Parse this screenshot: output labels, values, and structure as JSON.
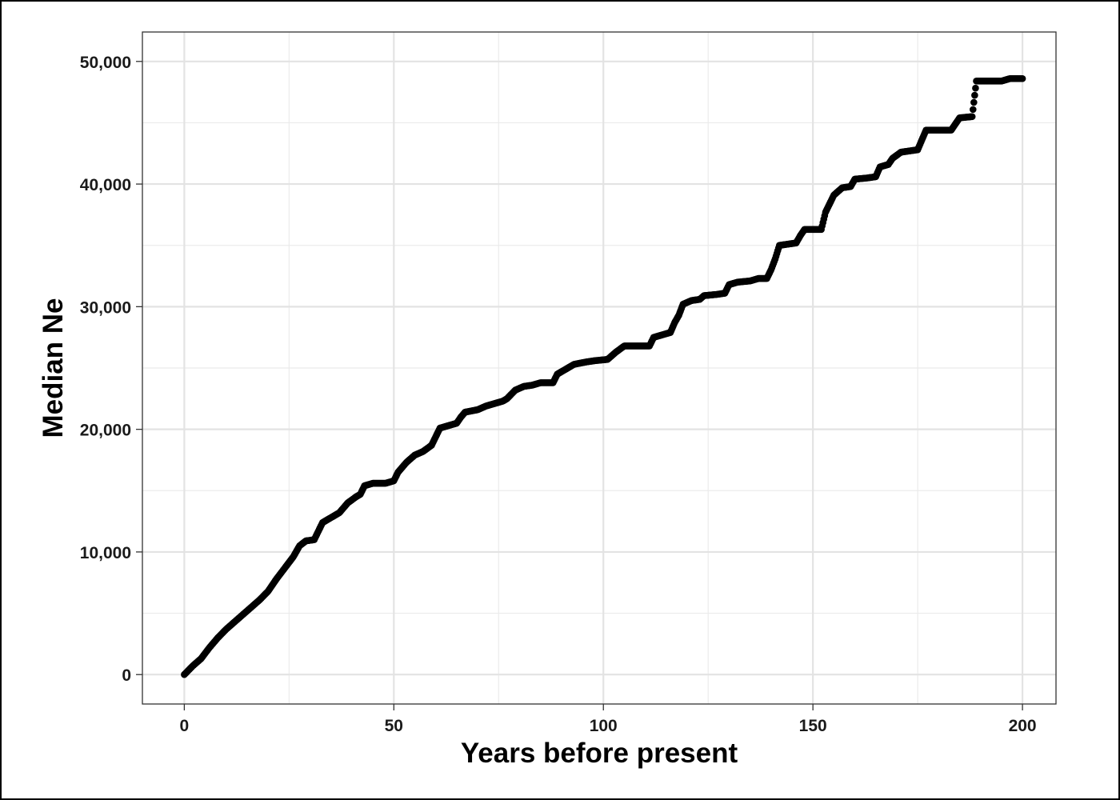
{
  "chart_data": {
    "type": "scatter",
    "title": "",
    "xlabel": "Years before present",
    "ylabel": "Median Ne",
    "xlim": [
      -10,
      208
    ],
    "ylim": [
      -2400,
      52400
    ],
    "grid": true,
    "x_ticks": [
      0,
      50,
      100,
      150,
      200
    ],
    "x_tick_labels": [
      "0",
      "50",
      "100",
      "150",
      "200"
    ],
    "y_ticks": [
      0,
      10000,
      20000,
      30000,
      40000,
      50000
    ],
    "y_tick_labels": [
      "0",
      "10,000",
      "20,000",
      "30,000",
      "40,000",
      "50,000"
    ],
    "series": [
      {
        "color": "#000000",
        "points": [
          [
            0,
            0
          ],
          [
            2,
            700
          ],
          [
            4,
            1300
          ],
          [
            6,
            2200
          ],
          [
            8,
            3000
          ],
          [
            10,
            3700
          ],
          [
            12,
            4300
          ],
          [
            14,
            4900
          ],
          [
            16,
            5500
          ],
          [
            18,
            6100
          ],
          [
            20,
            6800
          ],
          [
            22,
            7800
          ],
          [
            24,
            8700
          ],
          [
            26,
            9600
          ],
          [
            27.5,
            10500
          ],
          [
            29,
            10900
          ],
          [
            31,
            11000
          ],
          [
            32,
            11700
          ],
          [
            33,
            12400
          ],
          [
            35,
            12800
          ],
          [
            37,
            13200
          ],
          [
            39,
            14000
          ],
          [
            41,
            14500
          ],
          [
            42,
            14700
          ],
          [
            43,
            15400
          ],
          [
            45,
            15600
          ],
          [
            48,
            15600
          ],
          [
            50,
            15800
          ],
          [
            51,
            16500
          ],
          [
            53,
            17300
          ],
          [
            55,
            17900
          ],
          [
            57,
            18200
          ],
          [
            59,
            18700
          ],
          [
            60,
            19400
          ],
          [
            61,
            20100
          ],
          [
            63,
            20300
          ],
          [
            65,
            20500
          ],
          [
            66,
            21000
          ],
          [
            67,
            21400
          ],
          [
            70,
            21600
          ],
          [
            72,
            21900
          ],
          [
            74,
            22100
          ],
          [
            76,
            22300
          ],
          [
            77,
            22500
          ],
          [
            79,
            23200
          ],
          [
            81,
            23500
          ],
          [
            83,
            23600
          ],
          [
            85,
            23800
          ],
          [
            88,
            23800
          ],
          [
            89,
            24500
          ],
          [
            91,
            24900
          ],
          [
            93,
            25300
          ],
          [
            96,
            25500
          ],
          [
            98,
            25600
          ],
          [
            101,
            25700
          ],
          [
            103,
            26300
          ],
          [
            105,
            26800
          ],
          [
            108,
            26800
          ],
          [
            111,
            26800
          ],
          [
            112,
            27500
          ],
          [
            114,
            27700
          ],
          [
            116,
            27900
          ],
          [
            117,
            28700
          ],
          [
            118,
            29300
          ],
          [
            119,
            30200
          ],
          [
            121,
            30500
          ],
          [
            123,
            30600
          ],
          [
            124,
            30900
          ],
          [
            127,
            31000
          ],
          [
            129,
            31100
          ],
          [
            130,
            31800
          ],
          [
            132,
            32000
          ],
          [
            135,
            32100
          ],
          [
            137,
            32300
          ],
          [
            139,
            32300
          ],
          [
            140,
            33000
          ],
          [
            141,
            33900
          ],
          [
            142,
            35000
          ],
          [
            144,
            35100
          ],
          [
            146,
            35200
          ],
          [
            147,
            35800
          ],
          [
            148,
            36300
          ],
          [
            150,
            36300
          ],
          [
            152,
            36300
          ],
          [
            153,
            37700
          ],
          [
            155,
            39100
          ],
          [
            157,
            39700
          ],
          [
            159,
            39800
          ],
          [
            160,
            40400
          ],
          [
            163,
            40500
          ],
          [
            165,
            40600
          ],
          [
            166,
            41400
          ],
          [
            168,
            41600
          ],
          [
            169,
            42100
          ],
          [
            171,
            42600
          ],
          [
            173,
            42700
          ],
          [
            175,
            42800
          ],
          [
            177,
            44400
          ],
          [
            180,
            44400
          ],
          [
            183,
            44400
          ],
          [
            185,
            45400
          ],
          [
            188,
            45500
          ],
          [
            189,
            48400
          ],
          [
            192,
            48400
          ],
          [
            195,
            48400
          ],
          [
            197,
            48600
          ],
          [
            200,
            48600
          ]
        ]
      }
    ]
  }
}
